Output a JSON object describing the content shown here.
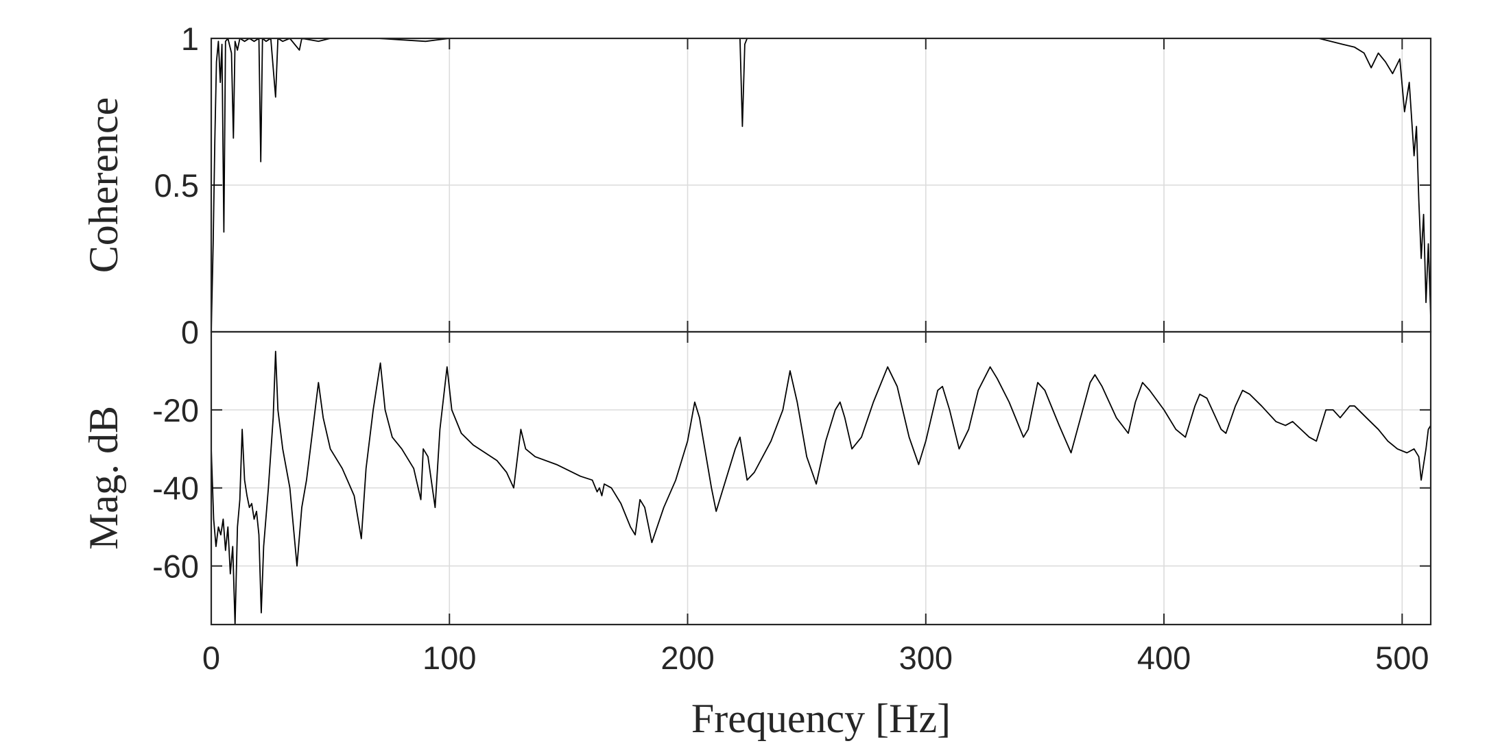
{
  "chart_data": [
    {
      "type": "line",
      "panel": "top",
      "ylabel": "Coherence",
      "xlim": [
        0,
        512
      ],
      "ylim": [
        0,
        1
      ],
      "xticks": [
        0,
        100,
        200,
        300,
        400,
        500
      ],
      "yticks": [
        0,
        0.5,
        1
      ],
      "ytick_labels": [
        "0",
        "0.5",
        "1"
      ],
      "grid": true,
      "series": [
        {
          "values": [
            [
              0,
              0.0
            ],
            [
              0.8,
              0.3
            ],
            [
              1.5,
              0.65
            ],
            [
              2.2,
              0.92
            ],
            [
              3,
              0.99
            ],
            [
              3.8,
              0.85
            ],
            [
              4.5,
              0.98
            ],
            [
              5.3,
              0.34
            ],
            [
              6,
              0.99
            ],
            [
              7,
              1.0
            ],
            [
              8.5,
              0.95
            ],
            [
              9.3,
              0.66
            ],
            [
              10,
              0.99
            ],
            [
              11,
              0.96
            ],
            [
              12,
              1.0
            ],
            [
              14,
              0.99
            ],
            [
              16,
              1.0
            ],
            [
              18,
              0.99
            ],
            [
              20,
              1.0
            ],
            [
              20.8,
              0.58
            ],
            [
              21.5,
              1.0
            ],
            [
              23,
              0.99
            ],
            [
              25,
              1.0
            ],
            [
              27,
              0.8
            ],
            [
              28,
              1.0
            ],
            [
              30,
              0.99
            ],
            [
              33,
              1.0
            ],
            [
              37,
              0.96
            ],
            [
              38,
              1.0
            ],
            [
              45,
              0.99
            ],
            [
              50,
              1.0
            ],
            [
              60,
              1.0
            ],
            [
              70,
              1.0
            ],
            [
              90,
              0.99
            ],
            [
              100,
              1.0
            ],
            [
              150,
              1.0
            ],
            [
              200,
              1.0
            ],
            [
              222,
              1.0
            ],
            [
              223,
              0.7
            ],
            [
              224,
              0.98
            ],
            [
              225,
              1.0
            ],
            [
              250,
              1.0
            ],
            [
              300,
              1.0
            ],
            [
              350,
              1.0
            ],
            [
              400,
              1.0
            ],
            [
              450,
              1.0
            ],
            [
              465,
              1.0
            ],
            [
              470,
              0.99
            ],
            [
              475,
              0.98
            ],
            [
              480,
              0.97
            ],
            [
              484,
              0.95
            ],
            [
              487,
              0.9
            ],
            [
              490,
              0.95
            ],
            [
              493,
              0.92
            ],
            [
              496,
              0.88
            ],
            [
              499,
              0.93
            ],
            [
              501,
              0.75
            ],
            [
              503,
              0.85
            ],
            [
              505,
              0.6
            ],
            [
              506,
              0.7
            ],
            [
              507,
              0.45
            ],
            [
              508,
              0.25
            ],
            [
              509,
              0.4
            ],
            [
              510,
              0.1
            ],
            [
              511,
              0.3
            ],
            [
              512,
              0.05
            ]
          ]
        }
      ]
    },
    {
      "type": "line",
      "panel": "bottom",
      "xlabel": "Frequency [Hz]",
      "ylabel": "Mag. dB",
      "xlim": [
        0,
        512
      ],
      "ylim": [
        -75,
        0
      ],
      "xticks": [
        0,
        100,
        200,
        300,
        400,
        500
      ],
      "xtick_labels": [
        "0",
        "100",
        "200",
        "300",
        "400",
        "500"
      ],
      "yticks": [
        -60,
        -40,
        -20
      ],
      "ytick_labels": [
        "-60",
        "-40",
        "-20"
      ],
      "grid": true,
      "series": [
        {
          "values": [
            [
              0,
              -30
            ],
            [
              1,
              -48
            ],
            [
              2,
              -55
            ],
            [
              3,
              -50
            ],
            [
              4,
              -52
            ],
            [
              5,
              -48
            ],
            [
              6,
              -56
            ],
            [
              7,
              -50
            ],
            [
              8,
              -62
            ],
            [
              9,
              -55
            ],
            [
              10,
              -75
            ],
            [
              11,
              -50
            ],
            [
              12,
              -43
            ],
            [
              13,
              -25
            ],
            [
              14,
              -38
            ],
            [
              15,
              -42
            ],
            [
              16,
              -45
            ],
            [
              17,
              -44
            ],
            [
              18,
              -48
            ],
            [
              19,
              -46
            ],
            [
              20,
              -52
            ],
            [
              21,
              -72
            ],
            [
              22,
              -55
            ],
            [
              24,
              -40
            ],
            [
              26,
              -22
            ],
            [
              27,
              -5
            ],
            [
              28,
              -20
            ],
            [
              30,
              -30
            ],
            [
              33,
              -40
            ],
            [
              36,
              -60
            ],
            [
              38,
              -45
            ],
            [
              40,
              -38
            ],
            [
              42,
              -28
            ],
            [
              45,
              -13
            ],
            [
              47,
              -22
            ],
            [
              50,
              -30
            ],
            [
              55,
              -35
            ],
            [
              60,
              -42
            ],
            [
              63,
              -53
            ],
            [
              65,
              -35
            ],
            [
              68,
              -20
            ],
            [
              71,
              -8
            ],
            [
              73,
              -20
            ],
            [
              76,
              -27
            ],
            [
              80,
              -30
            ],
            [
              85,
              -35
            ],
            [
              88,
              -43
            ],
            [
              89,
              -30
            ],
            [
              91,
              -32
            ],
            [
              94,
              -45
            ],
            [
              96,
              -25
            ],
            [
              99,
              -9
            ],
            [
              101,
              -20
            ],
            [
              105,
              -26
            ],
            [
              110,
              -29
            ],
            [
              115,
              -31
            ],
            [
              120,
              -33
            ],
            [
              124,
              -36
            ],
            [
              127,
              -40
            ],
            [
              130,
              -25
            ],
            [
              132,
              -30
            ],
            [
              136,
              -32
            ],
            [
              145,
              -34
            ],
            [
              155,
              -37
            ],
            [
              160,
              -38
            ],
            [
              162,
              -41
            ],
            [
              163,
              -40
            ],
            [
              164,
              -42
            ],
            [
              165,
              -39
            ],
            [
              168,
              -40
            ],
            [
              172,
              -44
            ],
            [
              176,
              -50
            ],
            [
              178,
              -52
            ],
            [
              180,
              -43
            ],
            [
              182,
              -45
            ],
            [
              185,
              -54
            ],
            [
              190,
              -45
            ],
            [
              195,
              -38
            ],
            [
              200,
              -28
            ],
            [
              203,
              -18
            ],
            [
              205,
              -22
            ],
            [
              210,
              -40
            ],
            [
              212,
              -46
            ],
            [
              215,
              -40
            ],
            [
              220,
              -30
            ],
            [
              222,
              -27
            ],
            [
              225,
              -38
            ],
            [
              228,
              -36
            ],
            [
              235,
              -28
            ],
            [
              240,
              -20
            ],
            [
              243,
              -10
            ],
            [
              246,
              -18
            ],
            [
              250,
              -32
            ],
            [
              254,
              -39
            ],
            [
              258,
              -28
            ],
            [
              262,
              -20
            ],
            [
              264,
              -18
            ],
            [
              266,
              -22
            ],
            [
              269,
              -30
            ],
            [
              273,
              -27
            ],
            [
              278,
              -18
            ],
            [
              284,
              -9
            ],
            [
              288,
              -14
            ],
            [
              293,
              -27
            ],
            [
              297,
              -34
            ],
            [
              300,
              -28
            ],
            [
              305,
              -15
            ],
            [
              307,
              -14
            ],
            [
              310,
              -20
            ],
            [
              314,
              -30
            ],
            [
              318,
              -25
            ],
            [
              322,
              -15
            ],
            [
              327,
              -9
            ],
            [
              330,
              -12
            ],
            [
              335,
              -18
            ],
            [
              341,
              -27
            ],
            [
              343,
              -25
            ],
            [
              347,
              -13
            ],
            [
              350,
              -15
            ],
            [
              356,
              -24
            ],
            [
              361,
              -31
            ],
            [
              365,
              -22
            ],
            [
              369,
              -13
            ],
            [
              371,
              -11
            ],
            [
              374,
              -14
            ],
            [
              380,
              -22
            ],
            [
              385,
              -26
            ],
            [
              388,
              -18
            ],
            [
              391,
              -13
            ],
            [
              394,
              -15
            ],
            [
              400,
              -20
            ],
            [
              405,
              -25
            ],
            [
              409,
              -27
            ],
            [
              413,
              -19
            ],
            [
              415,
              -16
            ],
            [
              418,
              -17
            ],
            [
              424,
              -25
            ],
            [
              426,
              -26
            ],
            [
              430,
              -19
            ],
            [
              433,
              -15
            ],
            [
              436,
              -16
            ],
            [
              441,
              -19
            ],
            [
              447,
              -23
            ],
            [
              451,
              -24
            ],
            [
              454,
              -23
            ],
            [
              461,
              -27
            ],
            [
              464,
              -28
            ],
            [
              468,
              -20
            ],
            [
              471,
              -20
            ],
            [
              474,
              -22
            ],
            [
              478,
              -19
            ],
            [
              480,
              -19
            ],
            [
              485,
              -22
            ],
            [
              490,
              -25
            ],
            [
              494,
              -28
            ],
            [
              498,
              -30
            ],
            [
              502,
              -31
            ],
            [
              505,
              -30
            ],
            [
              507,
              -32
            ],
            [
              508,
              -38
            ],
            [
              509,
              -34
            ],
            [
              510,
              -30
            ],
            [
              511,
              -25
            ],
            [
              512,
              -24
            ]
          ]
        }
      ]
    }
  ]
}
